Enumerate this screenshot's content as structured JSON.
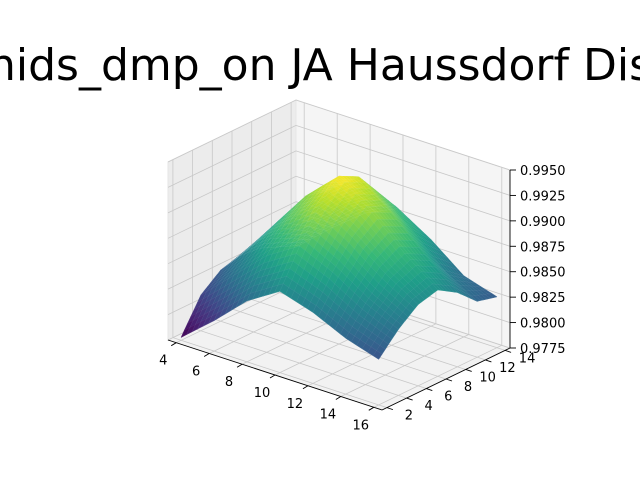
{
  "chart_data": {
    "type": "surface",
    "title": "nids_dmp_on JA Haussdorf Dis",
    "xlabel": "",
    "ylabel": "",
    "zlabel": "",
    "x_ticks": [
      "4",
      "6",
      "8",
      "10",
      "12",
      "14",
      "16"
    ],
    "y_ticks": [
      "2",
      "4",
      "6",
      "8",
      "10",
      "12",
      "14"
    ],
    "z_ticks": [
      "0.9775",
      "0.9800",
      "0.9825",
      "0.9850",
      "0.9875",
      "0.9900",
      "0.9925",
      "0.9950"
    ],
    "xlim": [
      3.5,
      16.5
    ],
    "ylim": [
      1.5,
      14.5
    ],
    "zlim": [
      0.9775,
      0.995
    ],
    "colormap": "viridis",
    "grid": true,
    "x": [
      4,
      6,
      8,
      10,
      12,
      14,
      16
    ],
    "y": [
      2,
      4,
      6,
      8,
      10,
      12,
      14
    ],
    "z": [
      [
        0.9778,
        0.9805,
        0.9835,
        0.9855,
        0.9845,
        0.983,
        0.982
      ],
      [
        0.981,
        0.984,
        0.987,
        0.989,
        0.9875,
        0.9855,
        0.984
      ],
      [
        0.9825,
        0.986,
        0.9895,
        0.992,
        0.99,
        0.9875,
        0.9855
      ],
      [
        0.983,
        0.987,
        0.991,
        0.994,
        0.9915,
        0.9885,
        0.986
      ],
      [
        0.9828,
        0.9868,
        0.9905,
        0.993,
        0.9905,
        0.9875,
        0.9848
      ],
      [
        0.982,
        0.9855,
        0.9885,
        0.9905,
        0.988,
        0.985,
        0.983
      ],
      [
        0.9812,
        0.984,
        0.9865,
        0.988,
        0.986,
        0.9835,
        0.9825
      ]
    ]
  }
}
